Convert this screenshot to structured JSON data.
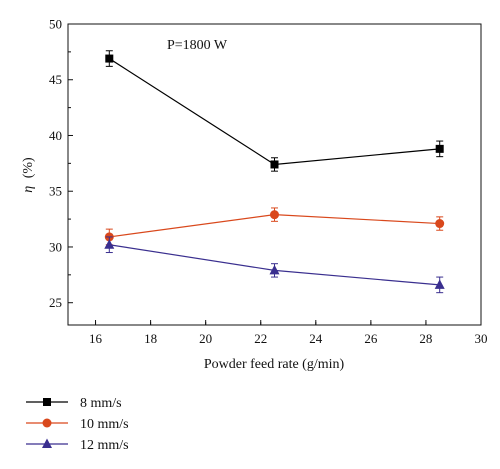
{
  "chart_data": {
    "type": "line",
    "annotation": "P=1800 W",
    "xlabel": "Powder feed rate (g/min)",
    "ylabel_symbol": "η",
    "ylabel_unit": "(%)",
    "xlim": [
      15,
      30
    ],
    "ylim": [
      23,
      50
    ],
    "xticks": [
      16,
      18,
      20,
      22,
      24,
      26,
      28,
      30
    ],
    "yticks": [
      25,
      30,
      35,
      40,
      45,
      50
    ],
    "x": [
      16.5,
      22.5,
      28.5
    ],
    "series": [
      {
        "name": "8 mm/s",
        "color": "#000000",
        "marker": "square",
        "values": [
          46.9,
          37.4,
          38.8
        ],
        "errors": [
          0.7,
          0.6,
          0.7
        ]
      },
      {
        "name": "10 mm/s",
        "color": "#d9481c",
        "marker": "circle",
        "values": [
          30.9,
          32.9,
          32.1
        ],
        "errors": [
          0.7,
          0.6,
          0.6
        ]
      },
      {
        "name": "12 mm/s",
        "color": "#3a2f8f",
        "marker": "triangle",
        "values": [
          30.2,
          27.9,
          26.6
        ],
        "errors": [
          0.7,
          0.6,
          0.7
        ]
      }
    ],
    "grid": false,
    "legend_position": "below"
  }
}
